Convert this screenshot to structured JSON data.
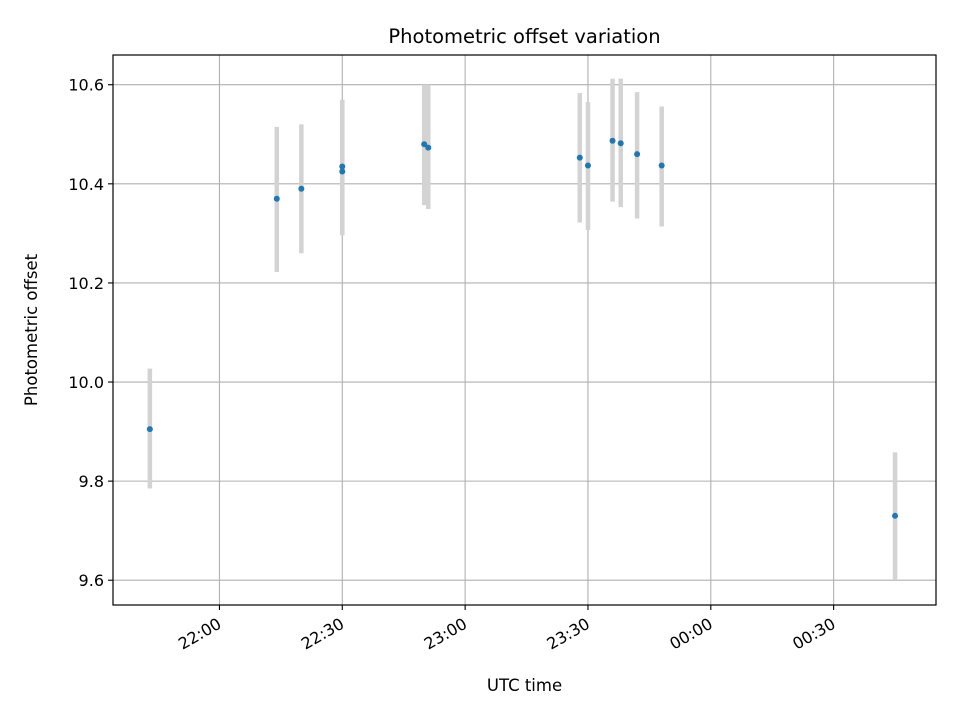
{
  "chart_data": {
    "type": "scatter",
    "title": "Photometric offset variation",
    "xlabel": "UTC time",
    "ylabel": "Photometric offset",
    "x_type": "time",
    "xlim": [
      "21:34",
      "00:55"
    ],
    "ylim": [
      9.55,
      10.66
    ],
    "grid": true,
    "x_ticks": [
      "22:00",
      "22:30",
      "23:00",
      "23:30",
      "00:00",
      "00:30"
    ],
    "y_ticks": [
      9.6,
      9.8,
      10.0,
      10.2,
      10.4,
      10.6
    ],
    "marker_color": "#1f77b4",
    "errorbar_color": "#d3d3d3",
    "points": [
      {
        "time": "21:43",
        "value": 9.905,
        "low": 9.785,
        "high": 10.027
      },
      {
        "time": "22:14",
        "value": 10.37,
        "low": 10.222,
        "high": 10.515
      },
      {
        "time": "22:20",
        "value": 10.39,
        "low": 10.26,
        "high": 10.52
      },
      {
        "time": "22:30",
        "value": 10.425,
        "low": 10.296,
        "high": 10.56
      },
      {
        "time": "22:30",
        "value": 10.435,
        "low": 10.305,
        "high": 10.57
      },
      {
        "time": "22:50",
        "value": 10.48,
        "low": 10.357,
        "high": 10.6
      },
      {
        "time": "22:51",
        "value": 10.473,
        "low": 10.349,
        "high": 10.6
      },
      {
        "time": "23:28",
        "value": 10.453,
        "low": 10.322,
        "high": 10.583
      },
      {
        "time": "23:30",
        "value": 10.437,
        "low": 10.307,
        "high": 10.565
      },
      {
        "time": "23:36",
        "value": 10.487,
        "low": 10.364,
        "high": 10.612
      },
      {
        "time": "23:38",
        "value": 10.482,
        "low": 10.353,
        "high": 10.612
      },
      {
        "time": "23:42",
        "value": 10.46,
        "low": 10.33,
        "high": 10.585
      },
      {
        "time": "23:48",
        "value": 10.437,
        "low": 10.314,
        "high": 10.556
      },
      {
        "time": "00:45",
        "value": 9.73,
        "low": 9.602,
        "high": 9.858
      }
    ]
  }
}
